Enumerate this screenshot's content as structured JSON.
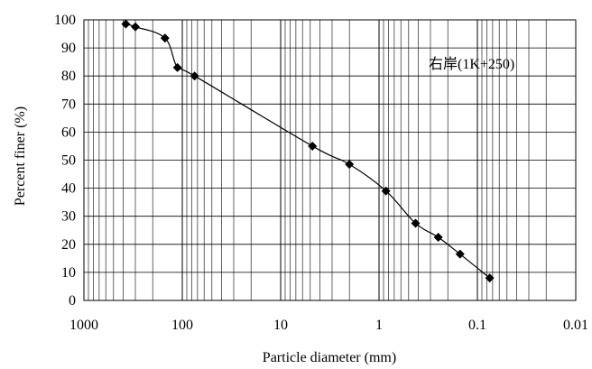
{
  "chart_data": {
    "type": "scatter",
    "title": "",
    "xlabel": "Particle diameter  (mm)",
    "ylabel": "Percent finer  (%)",
    "x_scale": "log",
    "x_reversed": true,
    "xlim": [
      1000,
      0.01
    ],
    "ylim": [
      0,
      100
    ],
    "x_ticks": [
      1000,
      100,
      10,
      1,
      0.1,
      0.01
    ],
    "x_tick_labels": [
      "1000",
      "100",
      "10",
      "1",
      "0.1",
      "0.01"
    ],
    "y_ticks": [
      0,
      10,
      20,
      30,
      40,
      50,
      60,
      70,
      80,
      90,
      100
    ],
    "grid": "log-minor vertical + major horizontal",
    "legend": "top-right",
    "series": [
      {
        "name": "右岸(1K+250)",
        "color": "#000000",
        "marker": "diamond",
        "line": "smooth",
        "points": [
          {
            "x": 375,
            "y": 98.5
          },
          {
            "x": 300,
            "y": 97.5
          },
          {
            "x": 150,
            "y": 93.5
          },
          {
            "x": 112,
            "y": 83
          },
          {
            "x": 75,
            "y": 80
          },
          {
            "x": 4.75,
            "y": 55
          },
          {
            "x": 2,
            "y": 48.5
          },
          {
            "x": 0.85,
            "y": 39
          },
          {
            "x": 0.425,
            "y": 27.5
          },
          {
            "x": 0.25,
            "y": 22.5
          },
          {
            "x": 0.15,
            "y": 16.5
          },
          {
            "x": 0.075,
            "y": 8
          }
        ]
      }
    ]
  }
}
